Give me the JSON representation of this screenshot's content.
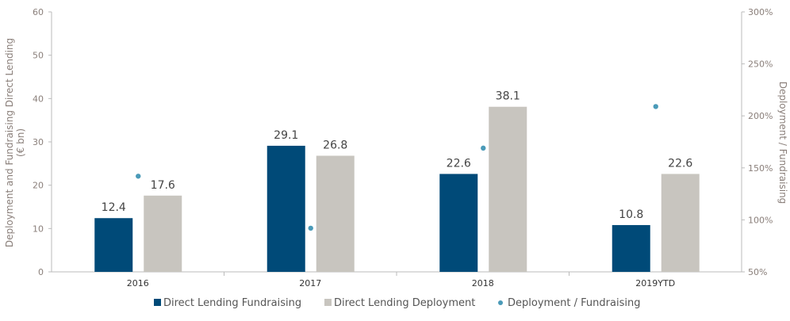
{
  "chart_data": {
    "type": "bar",
    "categories": [
      "2016",
      "2017",
      "2018",
      "2019YTD"
    ],
    "series": [
      {
        "name": "Direct Lending Fundraising",
        "kind": "bar",
        "axis": "left",
        "color": "#004a78",
        "values": [
          12.4,
          29.1,
          22.6,
          10.8
        ]
      },
      {
        "name": "Direct Lending Deployment",
        "kind": "bar",
        "axis": "left",
        "color": "#c8c5bf",
        "values": [
          17.6,
          26.8,
          38.1,
          22.6
        ]
      },
      {
        "name": "Deployment / Fundraising",
        "kind": "scatter",
        "axis": "right",
        "color": "#4a9ab8",
        "values": [
          142,
          92,
          169,
          209
        ]
      }
    ],
    "data_labels": {
      "fundraising": [
        "12.4",
        "29.1",
        "22.6",
        "10.8"
      ],
      "deployment": [
        "17.6",
        "26.8",
        "38.1",
        "22.6"
      ]
    },
    "ylabel_left_line1": "Deployment and Fundraising Direct Lending",
    "ylabel_left_line2": "(€ bn)",
    "ylabel_right": "Deployment  / Fundraising",
    "ylim_left": [
      0,
      60
    ],
    "ylim_right": [
      50,
      300
    ],
    "yticks_left": [
      "0",
      "10",
      "20",
      "30",
      "40",
      "50",
      "60"
    ],
    "yticks_right": [
      "50%",
      "100%",
      "150%",
      "200%",
      "250%",
      "300%"
    ],
    "grid": false,
    "legend_position": "bottom"
  }
}
